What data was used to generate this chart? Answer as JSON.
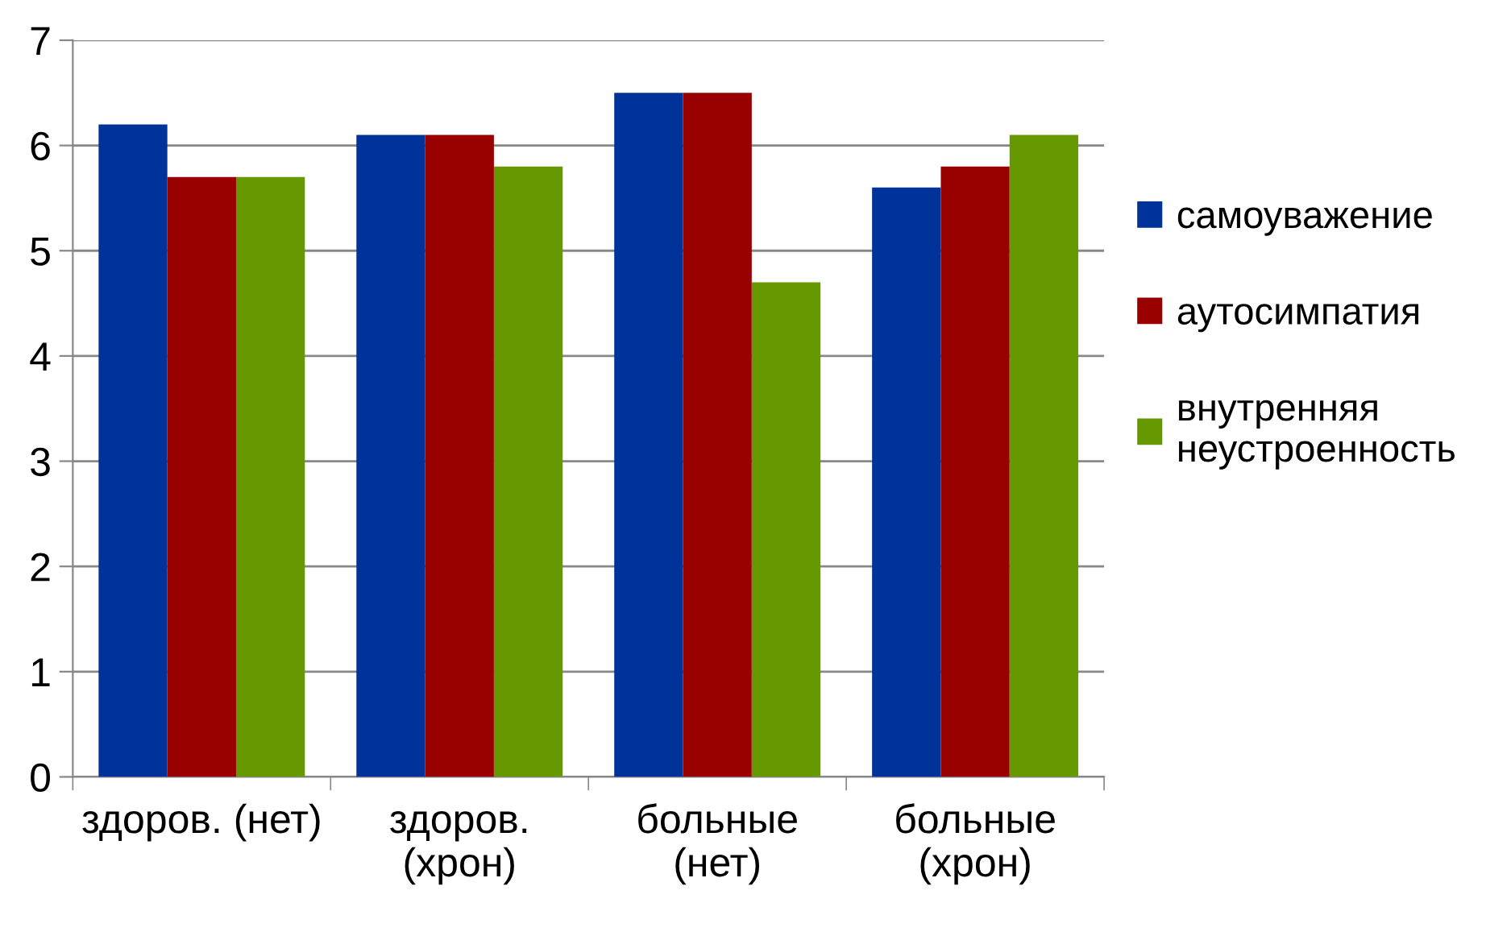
{
  "chart_data": {
    "type": "bar",
    "categories": [
      "здоров. (нет)",
      "здоров.\n(хрон)",
      "больные\n(нет)",
      "больные\n(хрон)"
    ],
    "series": [
      {
        "name": "самоуважение",
        "color": "#003399",
        "values": [
          6.2,
          6.1,
          6.5,
          5.6
        ]
      },
      {
        "name": "аутосимпатия",
        "color": "#990000",
        "values": [
          5.7,
          6.1,
          6.5,
          5.8
        ]
      },
      {
        "name": "внутренняя\nнеустроенность",
        "color": "#669900",
        "values": [
          5.7,
          5.8,
          4.7,
          6.1
        ]
      }
    ],
    "ylim": [
      0,
      7
    ],
    "yticks": [
      0,
      1,
      2,
      3,
      4,
      5,
      6,
      7
    ],
    "grid": "y",
    "legend": "right"
  }
}
